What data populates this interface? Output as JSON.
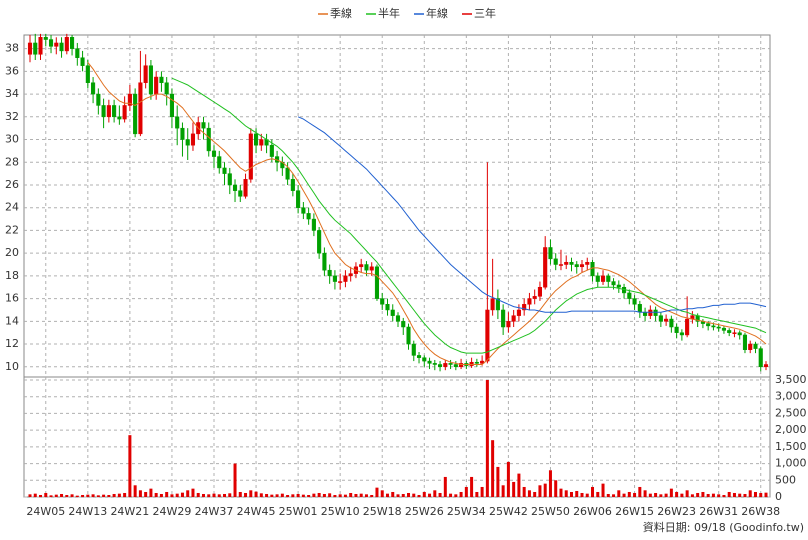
{
  "chart_data": {
    "type": "candlestick",
    "categories": [
      null,
      null,
      null,
      "24W05",
      null,
      null,
      null,
      null,
      null,
      null,
      null,
      "24W13",
      null,
      null,
      null,
      null,
      null,
      null,
      null,
      "24W21",
      null,
      null,
      null,
      null,
      null,
      null,
      null,
      "24W29",
      null,
      null,
      null,
      null,
      null,
      null,
      null,
      "24W37",
      null,
      null,
      null,
      null,
      null,
      null,
      null,
      "24W45",
      null,
      null,
      null,
      null,
      null,
      null,
      null,
      "25W01",
      null,
      null,
      null,
      null,
      null,
      null,
      null,
      "25W10",
      null,
      null,
      null,
      null,
      null,
      null,
      null,
      "25W18",
      null,
      null,
      null,
      null,
      null,
      null,
      null,
      "25W26",
      null,
      null,
      null,
      null,
      null,
      null,
      null,
      "25W34",
      null,
      null,
      null,
      null,
      null,
      null,
      null,
      "25W42",
      null,
      null,
      null,
      null,
      null,
      null,
      null,
      "25W50",
      null,
      null,
      null,
      null,
      null,
      null,
      null,
      "26W06",
      null,
      null,
      null,
      null,
      null,
      null,
      null,
      "26W15",
      null,
      null,
      null,
      null,
      null,
      null,
      null,
      "26W23",
      null,
      null,
      null,
      null,
      null,
      null,
      null,
      "26W31",
      null,
      null,
      null,
      null,
      null,
      null,
      null,
      "26W38",
      null
    ],
    "open": [
      37.5,
      38.5,
      37.5,
      39,
      38.8,
      38.2,
      38.5,
      37.8,
      39,
      38,
      37.2,
      36.5,
      35,
      34,
      33,
      32,
      33,
      32,
      31.8,
      33,
      34,
      30.5,
      35,
      36.5,
      34,
      35.5,
      35,
      34,
      32,
      31,
      30,
      29.5,
      30.5,
      31.5,
      31,
      29,
      28.5,
      27.5,
      27,
      26,
      25.5,
      25,
      26.5,
      30.5,
      29.5,
      30,
      29.5,
      28.5,
      28,
      27.5,
      26.5,
      25.5,
      24,
      23.5,
      23,
      22,
      20,
      18.5,
      18,
      17.5,
      17.5,
      18,
      18.2,
      18.8,
      19,
      18.5,
      18.8,
      16,
      15.5,
      15,
      14.5,
      14,
      13.5,
      12,
      11,
      10.8,
      10.5,
      10.3,
      10.2,
      10,
      10.3,
      10.2,
      10,
      10.3,
      10.1,
      10.4,
      10.3,
      10.5,
      15,
      16,
      15,
      13.5,
      14,
      14.5,
      15,
      15.5,
      16,
      16.2,
      17,
      20.5,
      19.5,
      19,
      19,
      19.2,
      19,
      18.8,
      19,
      19.2,
      18,
      17.5,
      18,
      17.5,
      17.2,
      17,
      16.5,
      16,
      15.5,
      14.8,
      14.5,
      15,
      14.5,
      14,
      14.2,
      13.5,
      13,
      12.8,
      14.2,
      14.5,
      14,
      13.8,
      13.6,
      13.5,
      13.4,
      13.2,
      13,
      13,
      12.8,
      11.5,
      12,
      11.6,
      10
    ],
    "high": [
      39.2,
      39.3,
      39.3,
      39.3,
      39.2,
      39,
      39,
      39.3,
      39.2,
      38.5,
      37.8,
      37,
      35.5,
      34.5,
      33.6,
      33.5,
      33.5,
      33,
      33.8,
      34.8,
      34.5,
      37.8,
      37.5,
      37,
      36,
      36,
      35.5,
      34.5,
      33,
      31.5,
      31,
      31.5,
      32,
      32,
      31.5,
      29.5,
      29,
      28,
      27.5,
      26.5,
      26,
      27,
      31,
      31,
      30.5,
      30.5,
      30,
      29,
      28.5,
      28,
      27,
      26,
      24.5,
      24,
      23.5,
      22.3,
      20.5,
      19,
      18.5,
      18.2,
      18.5,
      18.8,
      19.2,
      19.5,
      19.3,
      19.2,
      19,
      16.5,
      16,
      15.5,
      14.8,
      14.3,
      13.8,
      12.3,
      11.3,
      11,
      10.8,
      10.6,
      10.5,
      10.6,
      10.6,
      10.5,
      10.7,
      10.5,
      10.8,
      10.7,
      11,
      28,
      19.5,
      16.8,
      15.5,
      14.8,
      15,
      15.5,
      16,
      16.5,
      16.8,
      17.5,
      21.5,
      21.2,
      20,
      20.3,
      19.8,
      19.6,
      19.3,
      19.4,
      19.6,
      19.4,
      18.3,
      18.5,
      18.2,
      17.8,
      17.6,
      17.3,
      16.8,
      16.3,
      15.8,
      15.2,
      15.4,
      15.3,
      14.8,
      14.6,
      14.5,
      13.8,
      13.3,
      16.2,
      14.9,
      14.7,
      14.2,
      14,
      13.9,
      13.8,
      13.6,
      13.4,
      13.3,
      13.2,
      13,
      12.3,
      12.2,
      11.8,
      10.5
    ],
    "low": [
      36.8,
      37,
      37,
      38.2,
      37.6,
      37.5,
      37.2,
      37.5,
      37.4,
      36.5,
      36,
      34.5,
      33.2,
      32.2,
      31,
      31.5,
      31.5,
      31.3,
      31.5,
      32.5,
      30.2,
      30.3,
      34.5,
      33.5,
      33.5,
      34.2,
      33,
      31,
      29.5,
      28.5,
      28.2,
      29,
      30,
      30,
      28.5,
      27.5,
      27,
      26,
      25.2,
      24.5,
      24.5,
      24.8,
      26.2,
      28.8,
      29,
      28.8,
      28,
      27.2,
      26.8,
      26,
      25,
      23.5,
      23,
      22.5,
      21.5,
      19.5,
      18,
      17.3,
      16.8,
      16.8,
      17,
      17.5,
      17.8,
      18.3,
      18,
      18,
      15.8,
      15,
      14.5,
      14,
      13.5,
      12.8,
      11.5,
      10.5,
      10.3,
      10,
      9.8,
      9.7,
      9.6,
      9.7,
      9.8,
      9.7,
      9.8,
      9.8,
      9.9,
      10,
      10.1,
      10.3,
      14.5,
      14.2,
      12.8,
      13,
      13.5,
      14,
      14.5,
      15,
      15.5,
      15.8,
      16.8,
      19,
      18.5,
      18.5,
      18.6,
      18.4,
      18.2,
      18.3,
      18.5,
      17.5,
      17,
      17.2,
      17,
      16.8,
      16.5,
      16,
      15.5,
      15,
      14.3,
      14,
      14.2,
      14,
      13.5,
      13.6,
      13,
      12.5,
      12.3,
      12.6,
      13.8,
      13.5,
      13.4,
      13.2,
      13.2,
      13.1,
      12.9,
      12.7,
      12.6,
      12.4,
      11.2,
      11.2,
      11.2,
      9.6,
      9.7
    ],
    "close": [
      38.5,
      37.5,
      39,
      38.8,
      38.2,
      38.5,
      37.8,
      39,
      38,
      37.2,
      36.5,
      35,
      34,
      33,
      32,
      33,
      32,
      31.8,
      33,
      34,
      30.5,
      35,
      36.5,
      34,
      35.5,
      35,
      34,
      32,
      31,
      30,
      29.5,
      30.5,
      31.5,
      31,
      29,
      28.5,
      27.5,
      27,
      26,
      25.5,
      25,
      26.5,
      30.5,
      29.5,
      30,
      29.5,
      28.5,
      28,
      27.5,
      26.5,
      25.5,
      24,
      23.5,
      23,
      22,
      20,
      18.5,
      18,
      17.5,
      17.5,
      18,
      18.2,
      18.8,
      19,
      18.5,
      18.8,
      16,
      15.5,
      15,
      14.5,
      14,
      13.5,
      12,
      11,
      10.8,
      10.5,
      10.3,
      10.2,
      10,
      10.3,
      10.2,
      10,
      10.3,
      10.1,
      10.4,
      10.3,
      10.5,
      15,
      16,
      15,
      13.5,
      14,
      14.5,
      15,
      15.5,
      16,
      16.2,
      17,
      20.5,
      19.5,
      19,
      19,
      19.2,
      19,
      18.8,
      19,
      19.2,
      18,
      17.5,
      18,
      17.5,
      17.2,
      17,
      16.5,
      16,
      15.5,
      14.8,
      14.5,
      15,
      14.5,
      14,
      14.2,
      13.5,
      13,
      12.8,
      14.2,
      14.5,
      14,
      13.8,
      13.6,
      13.5,
      13.4,
      13.2,
      13,
      13,
      12.8,
      11.5,
      12,
      11.6,
      10,
      10.2
    ],
    "up_color": "#e00000",
    "down_color": "#00a000",
    "ylim": [
      9.1,
      39.2
    ],
    "yticks": [
      10,
      12,
      14,
      16,
      18,
      20,
      22,
      24,
      26,
      28,
      30,
      32,
      34,
      36,
      38
    ],
    "series": [
      {
        "name": "季線",
        "color": "#e07020",
        "values": [
          null,
          null,
          null,
          null,
          null,
          null,
          null,
          null,
          null,
          null,
          null,
          36.8,
          36.2,
          35.5,
          34.8,
          34.2,
          33.8,
          33.4,
          33.2,
          33.2,
          33,
          33.3,
          33.6,
          33.8,
          34,
          34,
          33.8,
          33.5,
          33.2,
          32.8,
          32.2,
          31.6,
          31,
          30.6,
          30.2,
          29.8,
          29.4,
          29,
          28.5,
          28,
          27.5,
          27.2,
          27.5,
          27.8,
          28,
          28.2,
          28.3,
          28.2,
          28,
          27.6,
          27,
          26.3,
          25.5,
          24.7,
          23.8,
          22.8,
          21.8,
          20.8,
          20,
          19.5,
          19,
          18.7,
          18.5,
          18.3,
          18.2,
          18.2,
          18,
          17.5,
          17,
          16.5,
          15.8,
          15,
          14.2,
          13.3,
          12.6,
          12,
          11.5,
          11.1,
          10.8,
          10.6,
          10.4,
          10.3,
          10.2,
          10.2,
          10.2,
          10.2,
          10.2,
          10.6,
          11.1,
          11.6,
          12,
          12.4,
          12.8,
          13.2,
          13.6,
          14,
          14.5,
          15,
          15.6,
          16.2,
          16.7,
          17.1,
          17.5,
          17.8,
          18,
          18.3,
          18.5,
          18.7,
          18.7,
          18.6,
          18.5,
          18.3,
          18.1,
          17.8,
          17.5,
          17.1,
          16.7,
          16.3,
          15.9,
          15.5,
          15.2,
          15,
          14.8,
          14.6,
          14.4,
          14.3,
          14.2,
          14.1,
          14,
          13.9,
          13.8,
          13.7,
          13.6,
          13.5,
          13.4,
          13.3,
          13.1,
          12.9,
          12.7,
          12.4,
          12
        ]
      },
      {
        "name": "半年",
        "color": "#20c020",
        "values": [
          null,
          null,
          null,
          null,
          null,
          null,
          null,
          null,
          null,
          null,
          null,
          null,
          null,
          null,
          null,
          null,
          null,
          null,
          null,
          null,
          null,
          null,
          null,
          null,
          null,
          null,
          null,
          35.4,
          35.2,
          35,
          34.8,
          34.5,
          34.2,
          33.9,
          33.6,
          33.3,
          33,
          32.7,
          32.4,
          32,
          31.6,
          31.2,
          30.9,
          30.6,
          30.3,
          30,
          29.7,
          29.4,
          29,
          28.5,
          28,
          27.4,
          26.7,
          26,
          25.3,
          24.6,
          24,
          23.4,
          22.9,
          22.5,
          22.1,
          21.7,
          21.2,
          20.7,
          20.2,
          19.7,
          19.2,
          18.6,
          18,
          17.4,
          16.8,
          16.2,
          15.6,
          15,
          14.4,
          13.8,
          13.3,
          12.8,
          12.4,
          12,
          11.7,
          11.5,
          11.3,
          11.2,
          11.2,
          11.2,
          11.2,
          11.3,
          11.5,
          11.7,
          11.9,
          12.1,
          12.3,
          12.5,
          12.7,
          12.9,
          13.2,
          13.6,
          14,
          14.5,
          15,
          15.4,
          15.8,
          16.1,
          16.4,
          16.6,
          16.8,
          16.9,
          17,
          17,
          17,
          17,
          16.9,
          16.8,
          16.7,
          16.6,
          16.5,
          16.3,
          16.1,
          15.9,
          15.7,
          15.5,
          15.3,
          15.1,
          14.9,
          14.8,
          14.6,
          14.5,
          14.4,
          14.3,
          14.2,
          14.1,
          14,
          13.9,
          13.8,
          13.7,
          13.6,
          13.5,
          13.4,
          13.2,
          13
        ]
      },
      {
        "name": "年線",
        "color": "#2060d0",
        "values": [
          null,
          null,
          null,
          null,
          null,
          null,
          null,
          null,
          null,
          null,
          null,
          null,
          null,
          null,
          null,
          null,
          null,
          null,
          null,
          null,
          null,
          null,
          null,
          null,
          null,
          null,
          null,
          null,
          null,
          null,
          null,
          null,
          null,
          null,
          null,
          null,
          null,
          null,
          null,
          null,
          null,
          null,
          null,
          null,
          null,
          null,
          null,
          null,
          null,
          null,
          null,
          32,
          31.8,
          31.5,
          31.2,
          30.9,
          30.6,
          30.2,
          29.8,
          29.4,
          29,
          28.6,
          28.2,
          27.8,
          27.4,
          26.9,
          26.4,
          25.9,
          25.4,
          24.9,
          24.4,
          23.8,
          23.2,
          22.6,
          22,
          21.5,
          21,
          20.5,
          20,
          19.5,
          19,
          18.6,
          18.2,
          17.8,
          17.4,
          17,
          16.6,
          16.3,
          16.1,
          15.9,
          15.7,
          15.5,
          15.3,
          15.2,
          15.1,
          15,
          15,
          14.9,
          14.8,
          14.8,
          14.8,
          14.8,
          14.8,
          14.9,
          14.9,
          14.9,
          14.9,
          14.9,
          14.9,
          14.9,
          14.9,
          14.9,
          14.9,
          14.9,
          14.9,
          14.9,
          14.8,
          14.8,
          14.8,
          14.8,
          14.8,
          14.9,
          15,
          15,
          15,
          15.1,
          15.1,
          15.2,
          15.2,
          15.3,
          15.4,
          15.4,
          15.5,
          15.5,
          15.5,
          15.6,
          15.6,
          15.6,
          15.5,
          15.4,
          15.3
        ]
      },
      {
        "name": "三年",
        "color": "#e00000"
      }
    ],
    "volume": {
      "color": "#e00000",
      "ylim": [
        0,
        3590
      ],
      "yticks": [
        0,
        500,
        {
          "value": 1000,
          "label": "1,000"
        },
        {
          "value": 1500,
          "label": "1,500"
        },
        {
          "value": 2000,
          "label": "2,000"
        },
        {
          "value": 2500,
          "label": "2,500"
        },
        {
          "value": 3000,
          "label": "3,000"
        },
        {
          "value": 3500,
          "label": "3,500"
        }
      ],
      "values": [
        80,
        100,
        60,
        120,
        50,
        70,
        90,
        60,
        80,
        40,
        60,
        70,
        80,
        50,
        70,
        60,
        90,
        100,
        120,
        1850,
        350,
        200,
        150,
        250,
        120,
        90,
        150,
        80,
        100,
        130,
        200,
        250,
        120,
        90,
        80,
        100,
        80,
        90,
        110,
        1000,
        150,
        120,
        200,
        160,
        110,
        90,
        70,
        80,
        100,
        60,
        80,
        90,
        70,
        60,
        100,
        120,
        90,
        110,
        60,
        80,
        70,
        120,
        90,
        100,
        80,
        60,
        280,
        200,
        100,
        150,
        80,
        90,
        120,
        100,
        60,
        150,
        100,
        200,
        120,
        600,
        100,
        80,
        150,
        300,
        600,
        150,
        300,
        3500,
        1700,
        900,
        350,
        1050,
        450,
        700,
        300,
        200,
        150,
        350,
        400,
        800,
        500,
        250,
        200,
        150,
        180,
        120,
        100,
        300,
        150,
        400,
        90,
        80,
        200,
        100,
        150,
        120,
        300,
        200,
        100,
        120,
        80,
        100,
        250,
        150,
        100,
        200,
        80,
        120,
        150,
        90,
        100,
        80,
        60,
        150,
        120,
        100,
        90,
        200,
        150,
        120,
        130
      ]
    },
    "grid": true,
    "legend": "top",
    "footer": "資料日期: 09/18 (Goodinfo.tw)"
  }
}
